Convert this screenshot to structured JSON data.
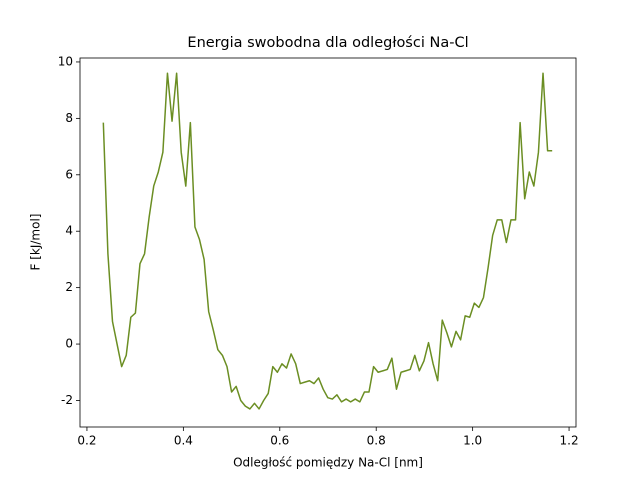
{
  "chart_data": {
    "type": "line",
    "title": "Energia swobodna dla odległości Na-Cl",
    "x_label": "Odległość pomiędzy Na-Cl [nm]",
    "y_label": "F [kJ/mol]",
    "x": [
      0.234,
      0.2435,
      0.253,
      0.2625,
      0.272,
      0.2815,
      0.291,
      0.3005,
      0.31,
      0.3195,
      0.329,
      0.3385,
      0.348,
      0.3575,
      0.367,
      0.3765,
      0.386,
      0.3955,
      0.405,
      0.4145,
      0.424,
      0.4335,
      0.443,
      0.4525,
      0.462,
      0.4715,
      0.481,
      0.4905,
      0.5,
      0.5095,
      0.519,
      0.5285,
      0.538,
      0.5475,
      0.557,
      0.5665,
      0.576,
      0.5855,
      0.595,
      0.6045,
      0.614,
      0.6235,
      0.633,
      0.6425,
      0.652,
      0.6615,
      0.671,
      0.6805,
      0.69,
      0.6995,
      0.709,
      0.7185,
      0.728,
      0.7375,
      0.747,
      0.7565,
      0.766,
      0.7755,
      0.785,
      0.7945,
      0.804,
      0.8135,
      0.823,
      0.8325,
      0.842,
      0.8515,
      0.861,
      0.8705,
      0.88,
      0.8895,
      0.899,
      0.9085,
      0.918,
      0.9275,
      0.937,
      0.9465,
      0.956,
      0.9655,
      0.975,
      0.9845,
      0.994,
      1.0035,
      1.013,
      1.0225,
      1.032,
      1.0415,
      1.051,
      1.0605,
      1.07,
      1.0795,
      1.089,
      1.0985,
      1.108,
      1.1175,
      1.127,
      1.1365,
      1.146,
      1.1555,
      1.165
    ],
    "series": [
      {
        "name": "F",
        "color": "#6b8e23",
        "values": [
          7.85,
          3.2,
          0.8,
          0.0,
          -0.8,
          -0.4,
          0.95,
          1.1,
          2.85,
          3.2,
          4.5,
          5.6,
          6.1,
          6.8,
          9.6,
          7.9,
          9.6,
          6.8,
          5.6,
          7.85,
          4.15,
          3.7,
          3.0,
          1.15,
          0.5,
          -0.2,
          -0.4,
          -0.8,
          -1.7,
          -1.5,
          -2.0,
          -2.2,
          -2.3,
          -2.1,
          -2.3,
          -2.0,
          -1.75,
          -0.8,
          -1.0,
          -0.7,
          -0.85,
          -0.35,
          -0.7,
          -1.4,
          -1.35,
          -1.3,
          -1.4,
          -1.2,
          -1.6,
          -1.9,
          -1.95,
          -1.8,
          -2.05,
          -1.95,
          -2.05,
          -1.95,
          -2.05,
          -1.7,
          -1.7,
          -0.8,
          -1.0,
          -0.95,
          -0.9,
          -0.5,
          -1.6,
          -1.0,
          -0.95,
          -0.9,
          -0.4,
          -0.95,
          -0.6,
          0.05,
          -0.7,
          -1.3,
          0.85,
          0.4,
          -0.1,
          0.45,
          0.15,
          1.0,
          0.95,
          1.45,
          1.3,
          1.65,
          2.7,
          3.85,
          4.4,
          4.4,
          3.6,
          4.4,
          4.4,
          7.85,
          5.15,
          6.1,
          5.6,
          6.8,
          9.6,
          6.85,
          6.85
        ]
      }
    ],
    "xlim": [
      0.1856,
      1.2144
    ],
    "ylim": [
      -2.94,
      10.14
    ],
    "xticks": [
      0.2,
      0.4,
      0.6,
      0.8,
      {
        "value": 1,
        "label": "1.0"
      },
      1.2
    ],
    "yticks": [
      -2,
      0,
      2,
      4,
      6,
      8,
      10
    ],
    "grid": false
  }
}
